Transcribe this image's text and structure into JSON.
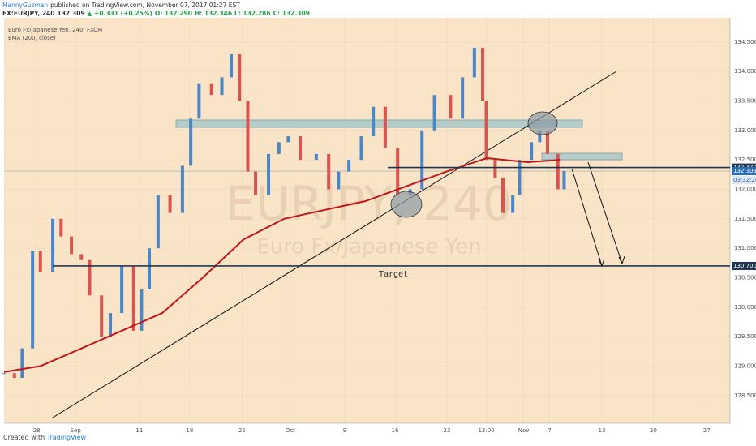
{
  "header": {
    "author": "MannyGuzman",
    "published": "published on TradingView.com, November 07, 2017 01:27 EST",
    "symbol": "FX:EURJPY, 240",
    "last": "132.309",
    "change": "▲ +0.331 (+0.25%)",
    "open": "O: 132.290",
    "high": "H: 132.346",
    "low": "L: 132.286",
    "close": "C: 132.309"
  },
  "footer": {
    "created": "Created with",
    "brand": "TradingView"
  },
  "chart_data": {
    "type": "candlestick",
    "watermark": "EURJPY, 240",
    "watermark_subtitle": "Euro Fx/Japanese Yen",
    "annotation": "Target",
    "series": [
      {
        "name": "Euro Fx/Japanese Yen, 240, FXCM",
        "up_color": "#4a86c8",
        "down_color": "#d9534f",
        "x": [
          0,
          2,
          3.5,
          5.5,
          7,
          9.4,
          11,
          13,
          14.9,
          16.5,
          18.8,
          20.5,
          22.7,
          25,
          26.5,
          28,
          29.7,
          32,
          34.4,
          36,
          37.6,
          40,
          42,
          43.8,
          45.4,
          47,
          48.5,
          51,
          53,
          54.8,
          57.1,
          60.2,
          62.6,
          64.5,
          66.5,
          68.9,
          71.2,
          73.5,
          75.9,
          78.3,
          80.6,
          83,
          86.1,
          88.4,
          90.7,
          92.3,
          93,
          94.7,
          96.2,
          98.1,
          99.4,
          101.7,
          103.3,
          104.8,
          106.8,
          108
        ],
        "values": [
          128.88,
          128.8,
          129.3,
          130.95,
          130.6,
          131.5,
          131.2,
          130.9,
          130.8,
          130.2,
          129.5,
          129.9,
          130.7,
          129.6,
          130.3,
          131.0,
          131.9,
          131.6,
          132.4,
          133.2,
          133.8,
          133.6,
          133.9,
          134.3,
          133.5,
          132.3,
          131.9,
          132.6,
          132.8,
          132.9,
          132.5,
          132.6,
          132.0,
          132.3,
          132.5,
          132.9,
          133.4,
          132.7,
          131.9,
          132.0,
          133.0,
          133.6,
          133.2,
          133.9,
          134.4,
          133.5,
          132.5,
          132.2,
          131.6,
          131.9,
          132.5,
          132.8,
          133.0,
          132.6,
          132.0,
          132.31
        ]
      },
      {
        "name": "EMA (200, close)",
        "color": "#c0171c",
        "x": [
          0,
          7,
          14.9,
          22.7,
          30.5,
          38.3,
          46.2,
          54,
          61.8,
          69.7,
          77.5,
          85.3,
          93.1,
          101,
          107.2
        ],
        "values": [
          128.9,
          129.0,
          129.3,
          129.6,
          129.9,
          130.5,
          131.15,
          131.5,
          131.65,
          131.8,
          132.05,
          132.3,
          132.53,
          132.46,
          132.5
        ]
      }
    ],
    "levels": [
      {
        "value": 132.37,
        "label": "132.370"
      },
      {
        "value": 130.7,
        "label": "130.700"
      }
    ],
    "last_price": {
      "value": 132.309,
      "label": "132.309"
    },
    "countdown": "03:32:26",
    "xlim": [
      0,
      140
    ],
    "xticks": [
      {
        "value": 6.3,
        "label": "28"
      },
      {
        "value": 13.8,
        "label": "Sep"
      },
      {
        "value": 26.1,
        "label": "11"
      },
      {
        "value": 35.8,
        "label": "18"
      },
      {
        "value": 45.9,
        "label": "25"
      },
      {
        "value": 55.2,
        "label": "Oct"
      },
      {
        "value": 65.7,
        "label": "9"
      },
      {
        "value": 75.4,
        "label": "16"
      },
      {
        "value": 85.4,
        "label": "23"
      },
      {
        "value": 93,
        "label": "13:00"
      },
      {
        "value": 100.2,
        "label": "Nov"
      },
      {
        "value": 105.2,
        "label": "7"
      },
      {
        "value": 115.3,
        "label": "13"
      },
      {
        "value": 125.2,
        "label": "20"
      },
      {
        "value": 135.5,
        "label": "27"
      }
    ],
    "ylim": [
      128.03,
      134.91
    ],
    "yticks": [
      {
        "value": 128.5,
        "label": "128.500"
      },
      {
        "value": 129,
        "label": "129.000"
      },
      {
        "value": 129.5,
        "label": "129.500"
      },
      {
        "value": 130,
        "label": "130.000"
      },
      {
        "value": 130.5,
        "label": "130.500"
      },
      {
        "value": 131,
        "label": "131.000"
      },
      {
        "value": 131.5,
        "label": "131.500"
      },
      {
        "value": 132,
        "label": "132.000"
      },
      {
        "value": 132.5,
        "label": "132.500"
      },
      {
        "value": 133,
        "label": "133.000"
      },
      {
        "value": 133.5,
        "label": "133.500"
      },
      {
        "value": 134,
        "label": "134.000"
      },
      {
        "value": 134.5,
        "label": "134.500"
      }
    ],
    "grid": true
  }
}
